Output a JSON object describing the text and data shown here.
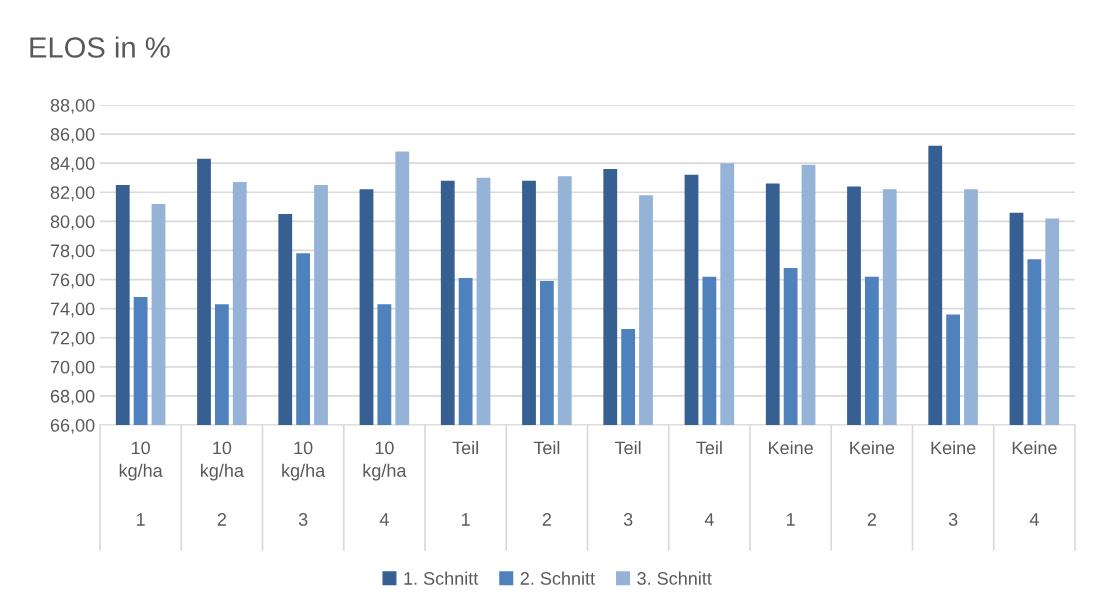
{
  "chart_data": {
    "type": "bar",
    "title": "ELOS in %",
    "categories": [
      "10\nkg/ha\n1",
      "10\nkg/ha\n2",
      "10\nkg/ha\n3",
      "10\nkg/ha\n4",
      "Teil\n1",
      "Teil\n2",
      "Teil\n3",
      "Teil\n4",
      "Keine\n1",
      "Keine\n2",
      "Keine\n3",
      "Keine\n4"
    ],
    "series": [
      {
        "name": "1. Schnitt",
        "color": "#376092",
        "values": [
          82.5,
          84.3,
          80.5,
          82.2,
          82.8,
          82.8,
          83.6,
          83.2,
          82.6,
          82.4,
          85.2,
          80.6
        ]
      },
      {
        "name": "2. Schnitt",
        "color": "#4f81bd",
        "values": [
          74.8,
          74.3,
          77.8,
          74.3,
          76.1,
          75.9,
          72.6,
          76.2,
          76.8,
          76.2,
          73.6,
          77.4
        ]
      },
      {
        "name": "3. Schnitt",
        "color": "#95b3d7",
        "values": [
          81.2,
          82.7,
          82.5,
          84.8,
          83.0,
          83.1,
          81.8,
          84.0,
          83.9,
          82.2,
          82.2,
          80.2
        ]
      }
    ],
    "ylim": [
      66,
      88
    ],
    "yticks": [
      {
        "value": 66,
        "label": "66,00"
      },
      {
        "value": 68,
        "label": "68,00"
      },
      {
        "value": 70,
        "label": "70,00"
      },
      {
        "value": 72,
        "label": "72,00"
      },
      {
        "value": 74,
        "label": "74,00"
      },
      {
        "value": 76,
        "label": "76,00"
      },
      {
        "value": 78,
        "label": "78,00"
      },
      {
        "value": 80,
        "label": "80,00"
      },
      {
        "value": 82,
        "label": "82,00"
      },
      {
        "value": 84,
        "label": "84,00"
      },
      {
        "value": 86,
        "label": "86,00"
      },
      {
        "value": 88,
        "label": "88,00"
      }
    ],
    "grid": "y",
    "legend": "bottom"
  }
}
